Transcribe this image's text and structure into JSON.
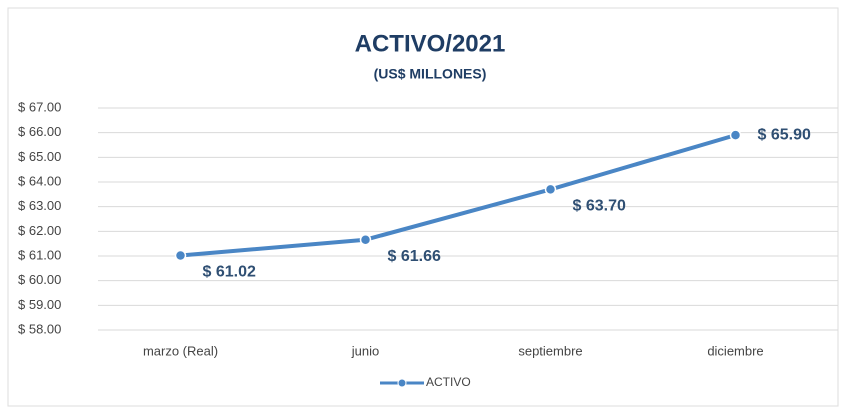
{
  "chart_data": {
    "type": "line",
    "title": "ACTIVO/2021",
    "subtitle": "(US$ MILLONES)",
    "categories": [
      "marzo (Real)",
      "junio",
      "septiembre",
      "diciembre"
    ],
    "series": [
      {
        "name": "ACTIVO",
        "color": "#4a86c5",
        "values": [
          61.02,
          61.66,
          63.7,
          65.9
        ],
        "value_labels": [
          "$ 61.02",
          "$ 61.66",
          "$ 63.70",
          "$ 65.90"
        ]
      }
    ],
    "ylim": [
      58,
      67
    ],
    "yticks": [
      {
        "value": 58,
        "label": "$ 58.00"
      },
      {
        "value": 59,
        "label": "$ 59.00"
      },
      {
        "value": 60,
        "label": "$ 60.00"
      },
      {
        "value": 61,
        "label": "$ 61.00"
      },
      {
        "value": 62,
        "label": "$ 62.00"
      },
      {
        "value": 63,
        "label": "$ 63.00"
      },
      {
        "value": 64,
        "label": "$ 64.00"
      },
      {
        "value": 65,
        "label": "$ 65.00"
      },
      {
        "value": 66,
        "label": "$ 66.00"
      },
      {
        "value": 67,
        "label": "$ 67.00"
      }
    ],
    "grid": true,
    "legend": "bottom"
  }
}
